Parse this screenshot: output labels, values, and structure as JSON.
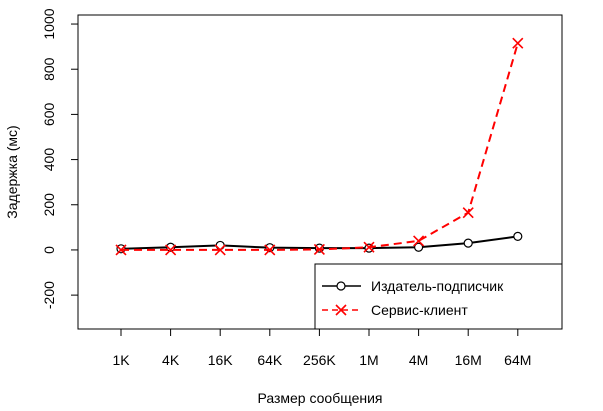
{
  "chart_data": {
    "type": "line",
    "categories": [
      "1K",
      "4K",
      "16K",
      "64K",
      "256K",
      "1M",
      "4M",
      "16M",
      "64M"
    ],
    "series": [
      {
        "name": "Издатель-подписчик",
        "values": [
          5,
          12,
          20,
          10,
          8,
          8,
          12,
          30,
          60
        ],
        "color": "#000000",
        "line_style": "solid",
        "marker": "circle"
      },
      {
        "name": "Сервис-клиент",
        "values": [
          0,
          0,
          0,
          0,
          2,
          12,
          40,
          165,
          915
        ],
        "color": "#ff0000",
        "line_style": "dashed",
        "marker": "x"
      }
    ],
    "xlabel": "Размер сообщения",
    "ylabel": "Задержка (мс)",
    "yticks": [
      -200,
      0,
      200,
      400,
      600,
      800,
      1000
    ],
    "ylim": [
      -350,
      1040
    ],
    "grid": false,
    "legend_position": "bottom-right"
  }
}
